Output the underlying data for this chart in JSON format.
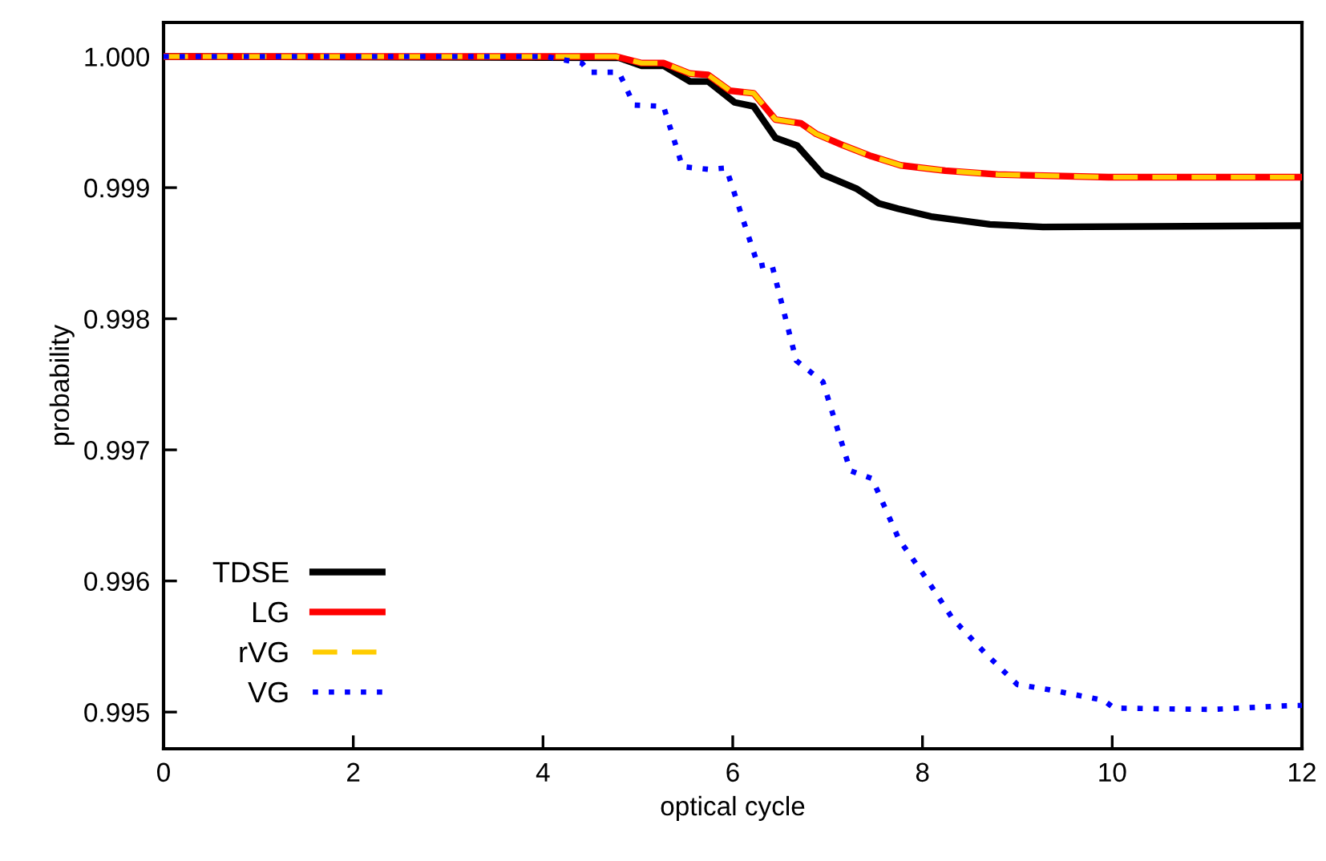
{
  "chart_data": {
    "type": "line",
    "xlabel": "optical cycle",
    "ylabel": "probability",
    "xlim": [
      0,
      12
    ],
    "ylim": [
      0.99472,
      1.00026
    ],
    "xticks": [
      0,
      2,
      4,
      6,
      8,
      10,
      12
    ],
    "yticks": [
      {
        "value": 0.995,
        "label": "0.995"
      },
      {
        "value": 0.996,
        "label": "0.996"
      },
      {
        "value": 0.997,
        "label": "0.997"
      },
      {
        "value": 0.998,
        "label": "0.998"
      },
      {
        "value": 0.999,
        "label": "0.999"
      },
      {
        "value": 1.0,
        "label": "1.000"
      }
    ],
    "grid": false,
    "legend": "bottom left",
    "marker": "none",
    "series": [
      {
        "name": "TDSE",
        "color": "#000000",
        "line_style": "solid",
        "x": [
          0,
          4.8,
          5.04,
          5.27,
          5.55,
          5.74,
          6.02,
          6.22,
          6.45,
          6.68,
          6.95,
          7.31,
          7.54,
          7.74,
          8.09,
          8.71,
          9.27,
          12
        ],
        "values": [
          1.0,
          0.99999,
          0.99993,
          0.99993,
          0.99981,
          0.99981,
          0.99965,
          0.99962,
          0.99938,
          0.99932,
          0.9991,
          0.99899,
          0.99888,
          0.99884,
          0.99878,
          0.99872,
          0.9987,
          0.99871
        ]
      },
      {
        "name": "LG",
        "color": "#ff0000",
        "line_style": "solid",
        "x": [
          0,
          4.77,
          5.04,
          5.27,
          5.55,
          5.74,
          5.97,
          6.22,
          6.45,
          6.72,
          6.88,
          7.14,
          7.46,
          7.77,
          8.24,
          8.79,
          9.96,
          12
        ],
        "values": [
          1.0,
          1.0,
          0.99995,
          0.99995,
          0.99987,
          0.99986,
          0.99974,
          0.99972,
          0.99952,
          0.99949,
          0.99941,
          0.99933,
          0.99924,
          0.99917,
          0.99913,
          0.9991,
          0.99908,
          0.99908
        ]
      },
      {
        "name": "rVG",
        "color": "#ffcc00",
        "line_style": "dashed",
        "x": [
          0,
          4.77,
          5.04,
          5.27,
          5.55,
          5.74,
          5.97,
          6.22,
          6.45,
          6.72,
          6.88,
          7.14,
          7.46,
          7.77,
          8.24,
          8.79,
          9.96,
          12
        ],
        "values": [
          1.0,
          1.0,
          0.99995,
          0.99995,
          0.99987,
          0.99986,
          0.99974,
          0.99972,
          0.99952,
          0.99949,
          0.99941,
          0.99933,
          0.99924,
          0.99917,
          0.99913,
          0.9991,
          0.99908,
          0.99908
        ]
      },
      {
        "name": "VG",
        "color": "#0000ff",
        "line_style": "dotted",
        "x": [
          0,
          4.03,
          4.41,
          4.49,
          4.8,
          4.96,
          5.27,
          5.47,
          5.74,
          5.93,
          6.27,
          6.41,
          6.67,
          6.95,
          7.24,
          7.47,
          7.75,
          8.03,
          8.32,
          8.66,
          9.0,
          9.34,
          9.91,
          10.02,
          11.05,
          11.9,
          12
        ],
        "values": [
          1.0,
          1.0,
          0.99995,
          0.99988,
          0.99988,
          0.99963,
          0.99962,
          0.99916,
          0.99914,
          0.99915,
          0.9984,
          0.99842,
          0.99768,
          0.99752,
          0.99684,
          0.99678,
          0.99632,
          0.99603,
          0.99571,
          0.99545,
          0.99521,
          0.99517,
          0.99509,
          0.99503,
          0.99502,
          0.99505,
          0.99505
        ]
      }
    ]
  }
}
